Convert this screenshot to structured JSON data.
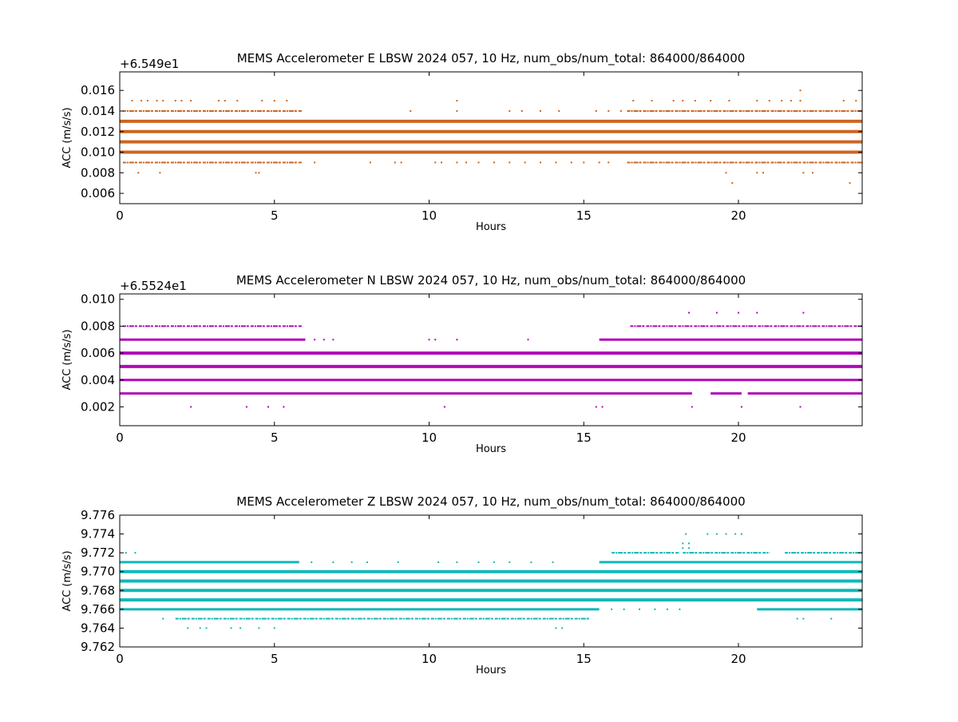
{
  "chart_data": [
    {
      "type": "scatter",
      "title": "MEMS Accelerometer E LBSW 2024 057, 10 Hz, num_obs/num_total: 864000/864000",
      "xlabel": "Hours",
      "ylabel": "ACC (m/s/s)",
      "offset_text": "+6.549e1",
      "color": "#cc6622",
      "xlim": [
        0,
        24
      ],
      "ylim": [
        0.005,
        0.0178
      ],
      "xticks": [
        0,
        5,
        10,
        15,
        20
      ],
      "xtick_labels": [
        "0",
        "5",
        "10",
        "15",
        "20"
      ],
      "yticks": [
        0.006,
        0.008,
        0.01,
        0.012,
        0.014,
        0.016
      ],
      "ytick_labels": [
        "0.006",
        "0.008",
        "0.010",
        "0.012",
        "0.014",
        "0.016"
      ],
      "series": [
        {
          "level": 0.013,
          "weight": "thick",
          "segments": [
            [
              0,
              24
            ]
          ]
        },
        {
          "level": 0.012,
          "weight": "thick",
          "segments": [
            [
              0,
              24
            ]
          ]
        },
        {
          "level": 0.011,
          "weight": "thick",
          "segments": [
            [
              0,
              24
            ]
          ]
        },
        {
          "level": 0.01,
          "weight": "thick",
          "segments": [
            [
              0,
              24
            ]
          ]
        },
        {
          "level": 0.014,
          "weight": "sparse",
          "segments": [
            [
              0.1,
              5.9
            ],
            [
              16.4,
              24
            ]
          ],
          "points": [
            9.4,
            10.9,
            12.6,
            13.0,
            13.6,
            14.2,
            15.4,
            15.8,
            16.2
          ]
        },
        {
          "level": 0.009,
          "weight": "sparse",
          "segments": [
            [
              0.1,
              5.9
            ],
            [
              16.4,
              24
            ]
          ],
          "points": [
            6.3,
            8.1,
            8.9,
            9.1,
            10.2,
            10.4,
            10.9,
            11.2,
            11.6,
            12.1,
            12.6,
            13.1,
            13.6,
            14.1,
            14.6,
            15.0,
            15.5,
            15.8
          ]
        },
        {
          "level": 0.015,
          "weight": "dots",
          "points": [
            0.4,
            0.7,
            0.9,
            1.2,
            1.4,
            1.8,
            2.0,
            2.3,
            3.2,
            3.4,
            3.8,
            4.6,
            5.0,
            5.4,
            10.9,
            16.6,
            17.2,
            17.9,
            18.2,
            18.6,
            19.1,
            19.7,
            20.6,
            21.0,
            21.4,
            21.7,
            22.0,
            23.4,
            23.8
          ]
        },
        {
          "level": 0.016,
          "weight": "dots",
          "points": [
            22.0
          ]
        },
        {
          "level": 0.008,
          "weight": "dots",
          "points": [
            0.6,
            1.3,
            4.4,
            4.5,
            19.6,
            20.6,
            20.8,
            22.1,
            22.4
          ]
        },
        {
          "level": 0.007,
          "weight": "dots",
          "points": [
            19.8,
            23.6
          ]
        }
      ]
    },
    {
      "type": "scatter",
      "title": "MEMS Accelerometer N LBSW 2024 057, 10 Hz, num_obs/num_total: 864000/864000",
      "xlabel": "Hours",
      "ylabel": "ACC (m/s/s)",
      "offset_text": "+6.5524e1",
      "color": "#b008b8",
      "xlim": [
        0,
        24
      ],
      "ylim": [
        0.0006,
        0.0104
      ],
      "xticks": [
        0,
        5,
        10,
        15,
        20
      ],
      "xtick_labels": [
        "0",
        "5",
        "10",
        "15",
        "20"
      ],
      "yticks": [
        0.002,
        0.004,
        0.006,
        0.008,
        0.01
      ],
      "ytick_labels": [
        "0.002",
        "0.004",
        "0.006",
        "0.008",
        "0.010"
      ],
      "series": [
        {
          "level": 0.006,
          "weight": "thick",
          "segments": [
            [
              0,
              24
            ]
          ]
        },
        {
          "level": 0.005,
          "weight": "thick",
          "segments": [
            [
              0,
              24
            ]
          ]
        },
        {
          "level": 0.004,
          "weight": "medium",
          "segments": [
            [
              0,
              24
            ]
          ]
        },
        {
          "level": 0.003,
          "weight": "medium",
          "segments": [
            [
              0,
              18.5
            ],
            [
              19.1,
              20.1
            ],
            [
              20.3,
              24
            ]
          ]
        },
        {
          "level": 0.007,
          "weight": "medium",
          "segments": [
            [
              0,
              6.0
            ],
            [
              15.5,
              24
            ]
          ],
          "points": [
            6.3,
            6.6,
            6.9,
            10.0,
            10.2,
            10.9,
            13.2
          ]
        },
        {
          "level": 0.008,
          "weight": "sparse",
          "segments": [
            [
              0.1,
              5.9
            ],
            [
              16.5,
              24
            ]
          ],
          "points": []
        },
        {
          "level": 0.009,
          "weight": "dots",
          "points": [
            18.4,
            19.3,
            20.0,
            20.6,
            22.1
          ]
        },
        {
          "level": 0.002,
          "weight": "dots",
          "points": [
            2.3,
            4.1,
            4.8,
            5.3,
            10.5,
            15.4,
            15.6,
            18.5,
            20.1,
            22.0
          ]
        }
      ]
    },
    {
      "type": "scatter",
      "title": "MEMS Accelerometer Z LBSW 2024 057, 10 Hz, num_obs/num_total: 864000/864000",
      "xlabel": "Hours",
      "ylabel": "ACC (m/s/s)",
      "offset_text": "",
      "color": "#10b8b8",
      "xlim": [
        0,
        24
      ],
      "ylim": [
        9.762,
        9.776
      ],
      "xticks": [
        0,
        5,
        10,
        15,
        20
      ],
      "xtick_labels": [
        "0",
        "5",
        "10",
        "15",
        "20"
      ],
      "yticks": [
        9.762,
        9.764,
        9.766,
        9.768,
        9.77,
        9.772,
        9.774,
        9.776
      ],
      "ytick_labels": [
        "9.762",
        "9.764",
        "9.766",
        "9.768",
        "9.770",
        "9.772",
        "9.774",
        "9.776"
      ],
      "series": [
        {
          "level": 9.767,
          "weight": "thick",
          "segments": [
            [
              0,
              24
            ]
          ]
        },
        {
          "level": 9.768,
          "weight": "thick",
          "segments": [
            [
              0,
              24
            ]
          ]
        },
        {
          "level": 9.769,
          "weight": "thick",
          "segments": [
            [
              0,
              24
            ]
          ]
        },
        {
          "level": 9.77,
          "weight": "thick",
          "segments": [
            [
              0,
              24
            ]
          ]
        },
        {
          "level": 9.766,
          "weight": "medium",
          "segments": [
            [
              0,
              15.5
            ],
            [
              20.6,
              24
            ]
          ],
          "points": [
            15.9,
            16.3,
            16.8,
            17.3,
            17.7,
            18.1
          ]
        },
        {
          "level": 9.771,
          "weight": "medium",
          "segments": [
            [
              0,
              5.8
            ],
            [
              15.5,
              24
            ]
          ],
          "points": [
            6.2,
            6.9,
            7.5,
            8.0,
            9.0,
            10.3,
            10.9,
            11.6,
            12.1,
            12.6,
            13.3,
            14.0
          ]
        },
        {
          "level": 9.772,
          "weight": "sparse",
          "segments": [
            [
              15.9,
              18.1
            ],
            [
              18.2,
              21.0
            ],
            [
              21.5,
              24
            ]
          ],
          "points": [
            0.2,
            0.5
          ]
        },
        {
          "level": 9.7725,
          "weight": "dots",
          "points": [
            18.2,
            18.4
          ]
        },
        {
          "level": 9.773,
          "weight": "dots",
          "points": [
            18.2,
            18.4
          ]
        },
        {
          "level": 9.774,
          "weight": "dots",
          "points": [
            18.3,
            19.0,
            19.3,
            19.6,
            19.9,
            20.1
          ]
        },
        {
          "level": 9.765,
          "weight": "sparse",
          "segments": [
            [
              1.8,
              15.2
            ]
          ],
          "points": [
            1.4,
            21.9,
            22.1,
            23.0
          ]
        },
        {
          "level": 9.764,
          "weight": "dots",
          "points": [
            2.2,
            2.6,
            2.8,
            3.6,
            3.9,
            4.5,
            5.0,
            14.1,
            14.3
          ]
        }
      ]
    }
  ]
}
